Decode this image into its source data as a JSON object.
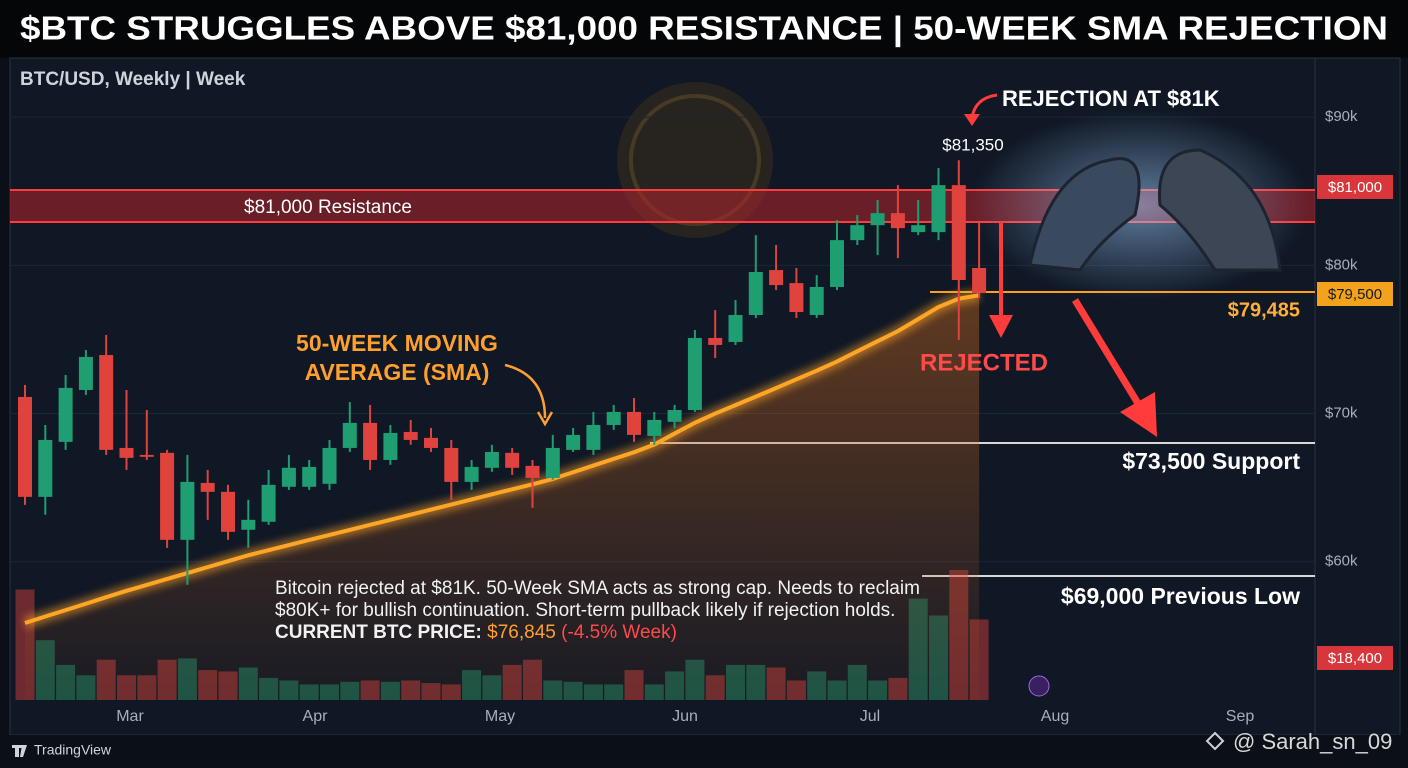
{
  "chart_data": {
    "type": "candlestick",
    "title": "$BTC STRUGGLES ABOVE $81,000 RESISTANCE | 50-WEEK SMA REJECTION",
    "subtitle": "BTC/USD, Weekly | Week",
    "up_color": "#1f9e72",
    "down_color": "#e0433d",
    "sma_color": "#ffa526",
    "open": [
      71120,
      64380,
      68090,
      71590,
      73950,
      67680,
      67210,
      67350,
      61480,
      65320,
      64720,
      62160,
      62700,
      65060,
      65060,
      65260,
      67680,
      69370,
      66870,
      68760,
      68360,
      67680,
      65390,
      66340,
      67350,
      66470,
      65660,
      67550,
      67550,
      69230,
      70110,
      68490,
      69440,
      70240,
      75100,
      74830,
      76650,
      79680,
      78800,
      76650,
      78540,
      81700,
      82710,
      83520,
      82240,
      82240,
      85410,
      79820
    ],
    "high": [
      71930,
      69230,
      72600,
      74290,
      75300,
      71590,
      70240,
      67550,
      67210,
      66200,
      65190,
      64180,
      66200,
      67210,
      66870,
      68220,
      70780,
      70580,
      69230,
      69570,
      69030,
      68220,
      66870,
      67890,
      67680,
      66870,
      68560,
      69030,
      70110,
      70580,
      71050,
      70110,
      70580,
      75640,
      76980,
      77660,
      82040,
      81370,
      79820,
      79340,
      83050,
      83390,
      84400,
      85410,
      84400,
      86560,
      87090,
      82910
    ],
    "low": [
      63840,
      63170,
      67550,
      71260,
      67210,
      66200,
      66870,
      60940,
      58450,
      62830,
      61480,
      60940,
      62490,
      64850,
      64850,
      64850,
      67410,
      66200,
      66540,
      67890,
      67410,
      64180,
      64850,
      66070,
      65860,
      63640,
      65530,
      67410,
      67210,
      68900,
      68090,
      67890,
      69030,
      70110,
      73750,
      74630,
      76450,
      78330,
      76450,
      76450,
      78330,
      81370,
      80690,
      80490,
      82040,
      81700,
      74960,
      77790
    ],
    "close": [
      64380,
      68220,
      71730,
      73820,
      67550,
      67010,
      67080,
      61480,
      65390,
      64720,
      62020,
      62830,
      65190,
      66340,
      66400,
      67680,
      69370,
      66870,
      68690,
      68220,
      67680,
      65390,
      66400,
      67410,
      66340,
      65660,
      67680,
      68560,
      69230,
      70110,
      68560,
      69570,
      70240,
      75100,
      74630,
      76650,
      79550,
      78670,
      76850,
      78540,
      81700,
      82710,
      83520,
      82510,
      82710,
      85410,
      79010,
      78130
    ],
    "sma_values": [
      55870,
      56310,
      56740,
      57170,
      57610,
      58040,
      58440,
      58840,
      59240,
      59640,
      60040,
      60440,
      60780,
      61130,
      61470,
      61810,
      62150,
      62490,
      62830,
      63180,
      63520,
      63860,
      64210,
      64550,
      64890,
      65230,
      65590,
      66040,
      66490,
      66940,
      67390,
      67910,
      68650,
      69380,
      70000,
      70570,
      71140,
      71720,
      72310,
      72890,
      73510,
      74200,
      74880,
      75560,
      76370,
      77190,
      77750,
      77980
    ],
    "volume_values": [
      85,
      46,
      27,
      19,
      31,
      19,
      19,
      31,
      32,
      23,
      22,
      25,
      17,
      15,
      12,
      12,
      14,
      15,
      14,
      15,
      13,
      12,
      23,
      19,
      27,
      31,
      15,
      14,
      12,
      12,
      23,
      12,
      22,
      31,
      19,
      27,
      27,
      25,
      15,
      22,
      15,
      27,
      15,
      17,
      78,
      65,
      100,
      62
    ],
    "volume_lim": [
      0,
      100
    ],
    "ylim": [
      50000,
      95000
    ],
    "yticks": [
      {
        "value": 60000,
        "label": "$60k"
      },
      {
        "value": 70000,
        "label": "$70k"
      },
      {
        "value": 80000,
        "label": "$80k"
      },
      {
        "value": 90000,
        "label": "$90k"
      }
    ],
    "grid": true,
    "x_labels": [
      "Mar",
      "Apr",
      "May",
      "Jun",
      "Jul",
      "Aug",
      "Sep"
    ],
    "annotations": {
      "rejection": "REJECTION AT $81K",
      "peak": "$81,350",
      "resistance": "$81,000 Resistance",
      "sma_label_1": "50-WEEK MOVING",
      "sma_label_2": "AVERAGE (SMA)",
      "rejected": "REJECTED",
      "sma_price": "$79,485",
      "support": "$73,500 Support",
      "previous_low": "$69,000 Previous Low",
      "tag_resistance": "$81,000",
      "tag_sma": "$79,500",
      "tag_volume": "$18,400"
    },
    "description": {
      "text": "Bitcoin rejected at $81K. 50-Week SMA acts as strong cap. Needs to reclaim $80K+ for bullish continuation. Short-term pullback likely if rejection holds.",
      "price_label": "CURRENT BTC PRICE:",
      "price": "$76,845",
      "change": "(-4.5% Week)"
    },
    "footer": {
      "brand": "TradingView",
      "handle": "@ Sarah_sn_09"
    }
  }
}
